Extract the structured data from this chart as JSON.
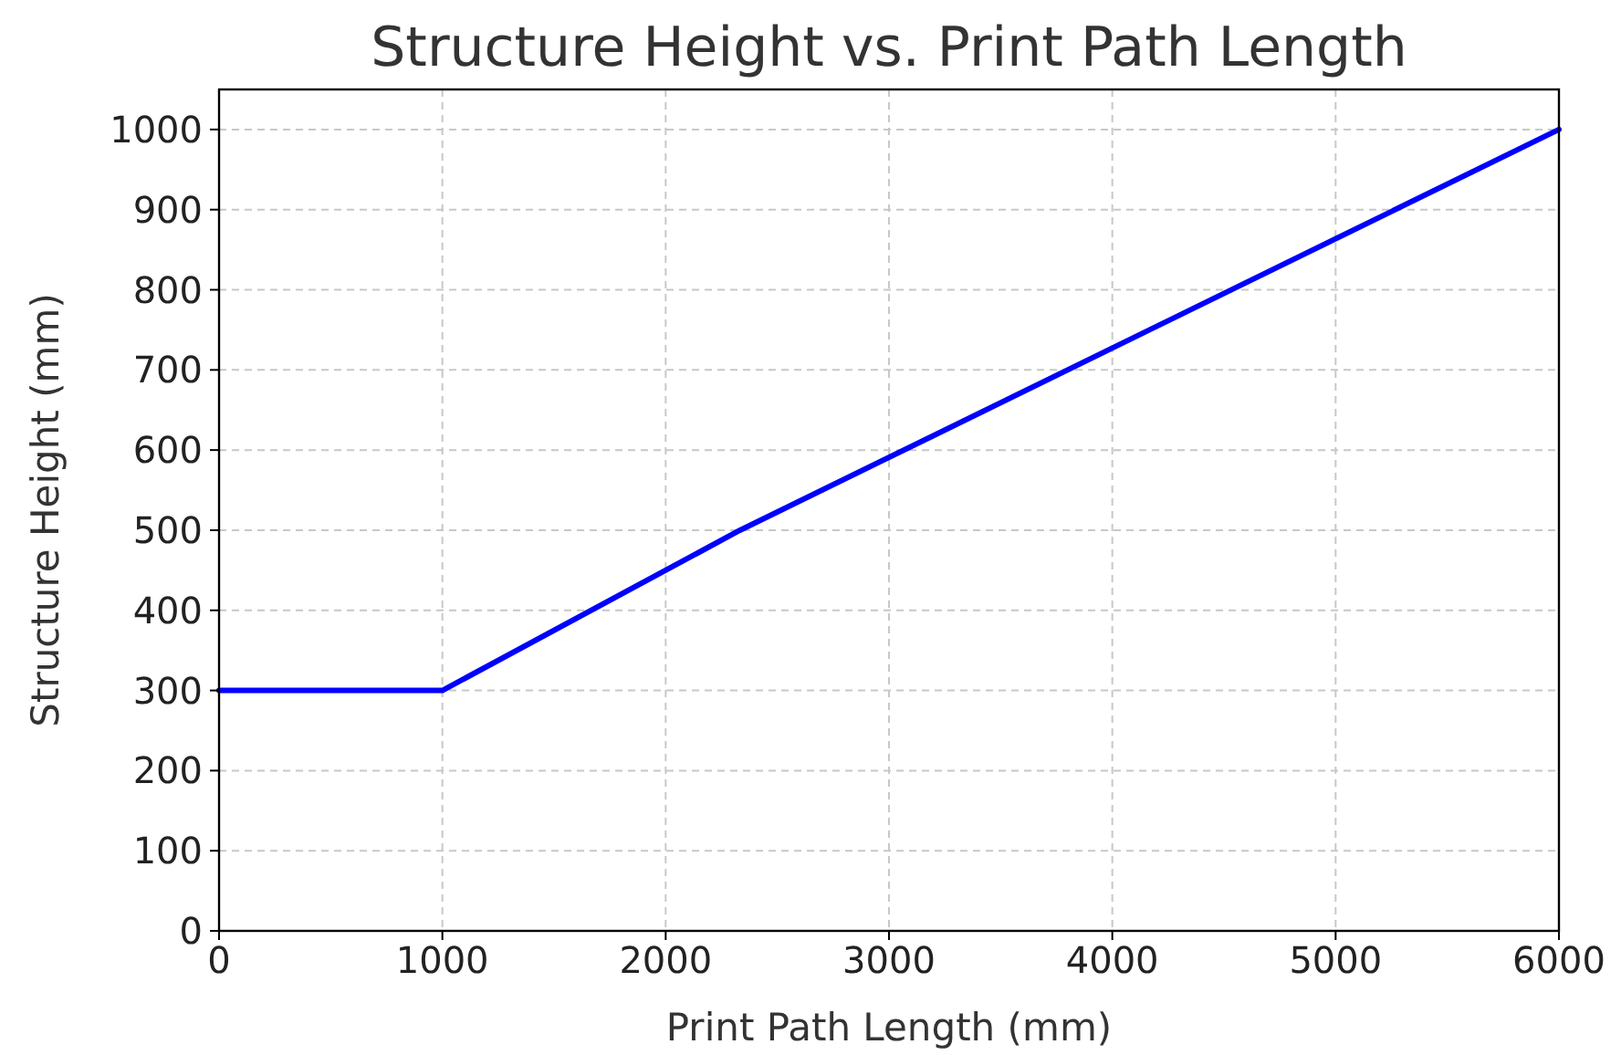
{
  "chart_data": {
    "type": "line",
    "title": "Structure Height vs. Print Path Length",
    "xlabel": "Print Path Length (mm)",
    "ylabel": "Structure Height (mm)",
    "x": [
      0,
      1000,
      2333,
      6000
    ],
    "series": [
      {
        "color": "#0000ff",
        "values": [
          300,
          300,
          500,
          1000
        ]
      }
    ],
    "xlim": [
      0,
      6000
    ],
    "ylim": [
      0,
      1050
    ],
    "xticks": [
      0,
      1000,
      2000,
      3000,
      4000,
      5000,
      6000
    ],
    "yticks": [
      0,
      100,
      200,
      300,
      400,
      500,
      600,
      700,
      800,
      900,
      1000
    ],
    "grid": true,
    "marker": "none",
    "line_style": "solid"
  }
}
